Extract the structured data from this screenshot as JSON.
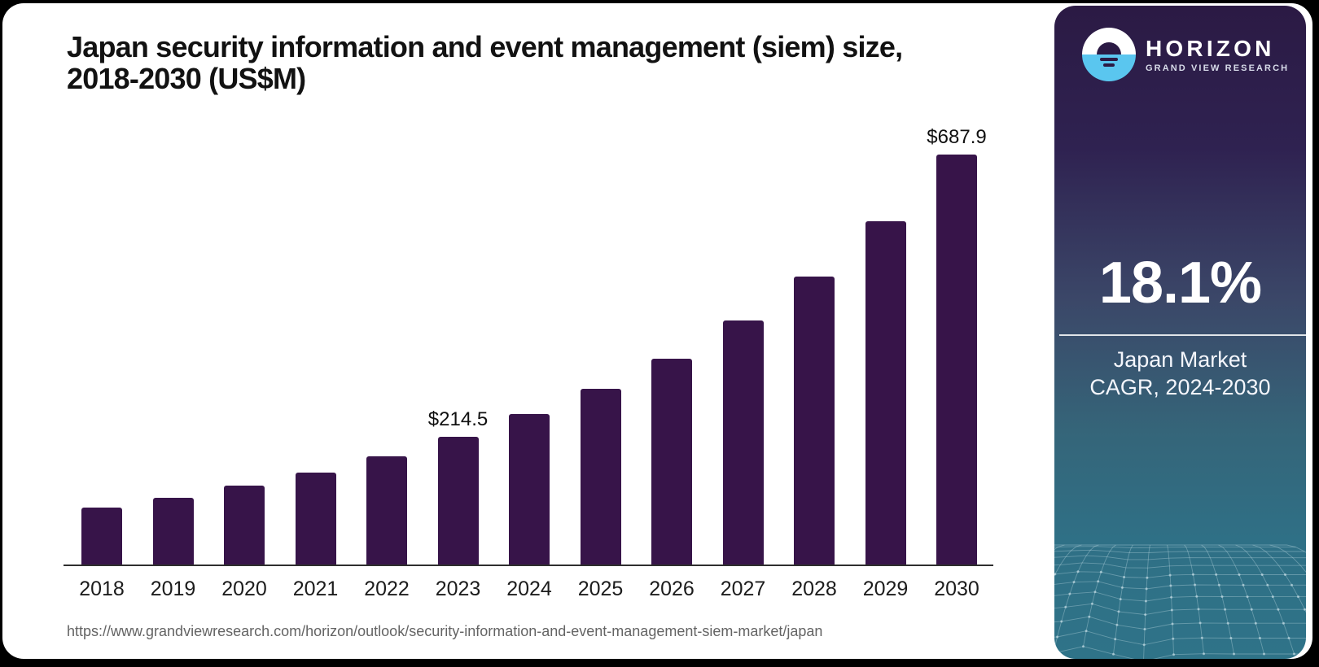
{
  "page": {
    "background": "#000000",
    "card_background": "#ffffff"
  },
  "header": {
    "title_line1": "Japan security information and event management (siem) size,",
    "title_line2": "2018-2030 (US$M)"
  },
  "chart_data": {
    "type": "bar",
    "title": "Japan security information and event management (siem) size, 2018-2030 (US$M)",
    "unit": "US$M",
    "categories": [
      "2018",
      "2019",
      "2020",
      "2021",
      "2022",
      "2023",
      "2024",
      "2025",
      "2026",
      "2027",
      "2028",
      "2029",
      "2030"
    ],
    "values": [
      96,
      112,
      132.5,
      155,
      182,
      214.5,
      252.5,
      295,
      346,
      409,
      484,
      576,
      687.9
    ],
    "labeled_points": [
      {
        "category": "2023",
        "label": "$214.5"
      },
      {
        "category": "2030",
        "label": "$687.9"
      }
    ],
    "bar_color": "#371449",
    "axis_color": "#2e2e2e",
    "xlabel": "",
    "ylabel": "",
    "ylim": [
      0,
      770
    ],
    "grid": false,
    "legend": false
  },
  "source": {
    "url": "https://www.grandviewresearch.com/horizon/outlook/security-information-and-event-management-siem-market/japan"
  },
  "sidebar": {
    "logo": {
      "brand": "HORIZON",
      "sub_brand": "GRAND VIEW RESEARCH",
      "icon_blue": "#5ac6ef"
    },
    "stat": {
      "value": "18.1%",
      "label_line1": "Japan Market",
      "label_line2": "CAGR, 2024-2030"
    },
    "colors": {
      "gradient_top": "#2b1a44",
      "gradient_mid": "#3b4768",
      "gradient_bottom": "#2f7388",
      "mesh_line": "#d6e9f0"
    }
  }
}
